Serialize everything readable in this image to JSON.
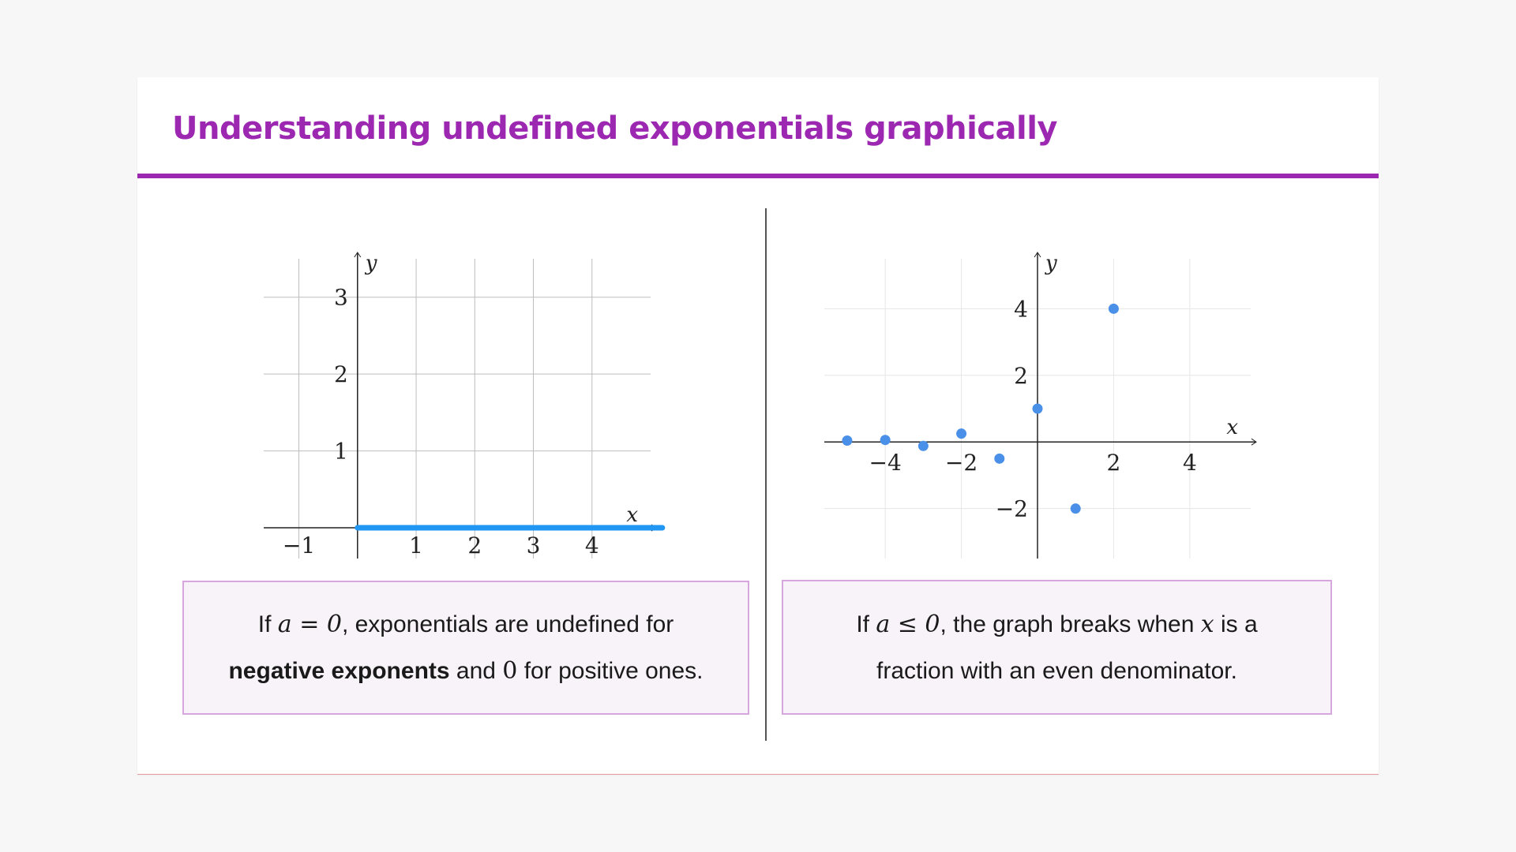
{
  "title": "Understanding undefined exponentials graphically",
  "left_panel": {
    "line1": {
      "pre": "If ",
      "math": "a = 0",
      "post": ", exponentials are undefined for"
    },
    "line2": {
      "bold": "negative exponents",
      "mid": " and ",
      "num": "0",
      "post": " for positive ones."
    }
  },
  "right_panel": {
    "line1": {
      "pre": "If ",
      "math": "a ≤ 0",
      "mid": ", the graph breaks when ",
      "var": "x",
      "post": " is a"
    },
    "line2": {
      "text": "fraction with an even denominator."
    }
  },
  "chart_data": [
    {
      "type": "line",
      "xlabel": "x",
      "ylabel": "y",
      "xlim": [
        -1.6,
        5.0
      ],
      "ylim": [
        -0.4,
        3.5
      ],
      "x_ticks": [
        -1,
        1,
        2,
        3,
        4
      ],
      "y_ticks": [
        1,
        2,
        3
      ],
      "x_tick_labels": [
        "−1",
        "1",
        "2",
        "3",
        "4"
      ],
      "y_tick_labels": [
        "1",
        "2",
        "3"
      ],
      "grid": true,
      "series": [
        {
          "color": "#2196f3",
          "x": [
            0,
            5.2
          ],
          "y": [
            0,
            0
          ]
        }
      ]
    },
    {
      "type": "scatter",
      "xlabel": "x",
      "ylabel": "y",
      "xlim": [
        -5.6,
        5.6
      ],
      "ylim": [
        -3.5,
        5.5
      ],
      "x_ticks": [
        -4,
        -2,
        2,
        4
      ],
      "y_ticks": [
        -2,
        2,
        4
      ],
      "x_tick_labels": [
        "−4",
        "−2",
        "2",
        "4"
      ],
      "y_tick_labels": [
        "−2",
        "2",
        "4"
      ],
      "grid": true,
      "series": [
        {
          "color": "#4a8fe8",
          "x": [
            -5,
            -4,
            -3,
            -2,
            -1,
            0,
            1,
            2
          ],
          "y": [
            0.04,
            0.06,
            -0.12,
            0.25,
            -0.5,
            1,
            -2,
            4
          ]
        }
      ]
    }
  ],
  "colors": {
    "accent": "#9c27b0",
    "series_left": "#2196f3",
    "series_right": "#4a8fe8"
  }
}
